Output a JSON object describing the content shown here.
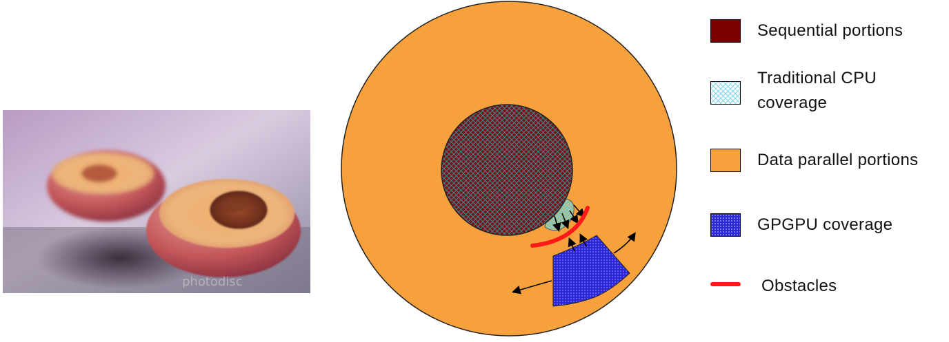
{
  "photo": {
    "subject": "two peach halves, one with pit",
    "watermark": "photodisc"
  },
  "diagram": {
    "colors": {
      "data_parallel": "#f7a13c",
      "sequential": "#7a0000",
      "cpu": "#7fd6ea",
      "gpgpu": "#2a25d8",
      "obstacle": "#ff1a1a"
    }
  },
  "legend": {
    "items": [
      {
        "key": "sequential",
        "label": "Sequential portions"
      },
      {
        "key": "cpu",
        "label": "Traditional CPU\ncoverage"
      },
      {
        "key": "data_parallel",
        "label": "Data parallel portions"
      },
      {
        "key": "gpgpu",
        "label": "GPGPU coverage"
      },
      {
        "key": "obstacles",
        "label": "Obstacles"
      }
    ]
  }
}
